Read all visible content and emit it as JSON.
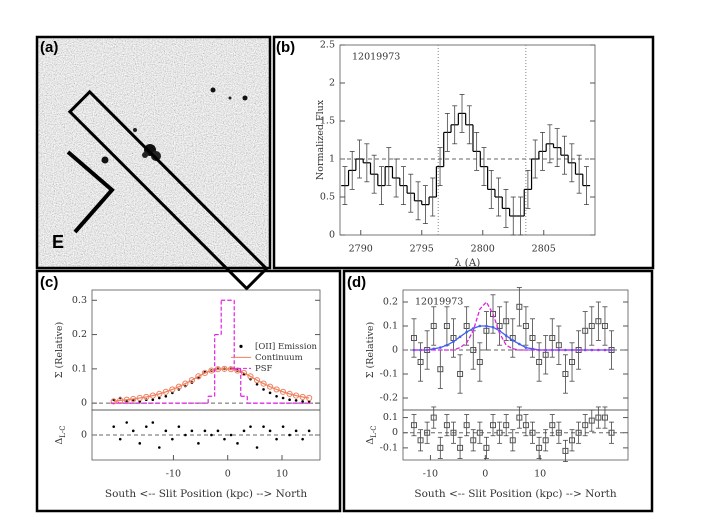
{
  "panels": [
    "(a)",
    "(b)",
    "(c)",
    "(d)"
  ],
  "image_panel": {
    "compass": "E"
  },
  "chart_data": [
    {
      "type": "line",
      "annotation": "12019973",
      "ylabel": "Normalized Flux",
      "xlabel": "λ (A)",
      "xlim": [
        2788.3,
        2809.2
      ],
      "xticks": [
        2790,
        2795,
        2800,
        2805
      ],
      "ylim": [
        0,
        2.5
      ],
      "yticks": [
        0,
        0.5,
        1,
        1.5,
        2,
        2.5
      ],
      "hlines": [
        1
      ],
      "vlines": [
        2796.35,
        2803.53
      ],
      "x": [
        2788.7,
        2789.3,
        2789.9,
        2790.5,
        2791.1,
        2791.7,
        2792.3,
        2792.9,
        2793.5,
        2794.1,
        2794.7,
        2795.3,
        2795.9,
        2796.5,
        2797.1,
        2797.7,
        2798.3,
        2798.9,
        2799.5,
        2800.1,
        2800.7,
        2801.3,
        2801.9,
        2802.5,
        2803.1,
        2803.7,
        2804.3,
        2804.9,
        2805.5,
        2806.1,
        2806.7,
        2807.3,
        2807.9,
        2808.5
      ],
      "series": [
        {
          "color": "#000000",
          "step": true,
          "values": [
            0.65,
            0.85,
            1.0,
            0.95,
            0.8,
            0.65,
            0.9,
            0.75,
            0.65,
            0.55,
            0.45,
            0.4,
            0.5,
            0.9,
            1.35,
            1.45,
            1.6,
            1.45,
            1.1,
            0.9,
            0.6,
            0.5,
            0.35,
            0.25,
            0.25,
            0.6,
            1.0,
            1.1,
            1.2,
            1.15,
            1.05,
            0.95,
            0.8,
            0.65
          ],
          "errors": [
            0.25,
            0.25,
            0.25,
            0.25,
            0.25,
            0.25,
            0.25,
            0.25,
            0.25,
            0.25,
            0.25,
            0.25,
            0.25,
            0.25,
            0.25,
            0.25,
            0.25,
            0.25,
            0.25,
            0.25,
            0.25,
            0.25,
            0.25,
            0.25,
            0.25,
            0.25,
            0.25,
            0.25,
            0.25,
            0.25,
            0.25,
            0.25,
            0.25,
            0.25
          ]
        }
      ]
    },
    {
      "type": "line",
      "ylabel": "Σ (Relative)",
      "legend": "right",
      "xlim": [
        -25,
        17
      ],
      "ylim": [
        -0.02,
        0.33
      ],
      "yticks": [
        0,
        0.1,
        0.2,
        0.3
      ],
      "hlines": [
        0
      ],
      "x": [
        -21,
        -19.8,
        -18.6,
        -17.4,
        -16.2,
        -15,
        -13.8,
        -12.6,
        -11.4,
        -10.2,
        -9,
        -7.8,
        -6.6,
        -5.4,
        -4.2,
        -3,
        -1.8,
        -0.6,
        0.6,
        1.8,
        3,
        4.2,
        5.4,
        6.6,
        7.8,
        9,
        10.2,
        11.4,
        12.6,
        13.8,
        15
      ],
      "series": [
        {
          "name": "[OII] Emission",
          "color": "#000000",
          "marker": "dot",
          "values": [
            0.01,
            0.015,
            0.005,
            0.01,
            0.005,
            0.01,
            0.01,
            0.015,
            0.02,
            0.03,
            0.04,
            0.05,
            0.06,
            0.075,
            0.09,
            0.095,
            0.1,
            0.1,
            0.1,
            0.095,
            0.085,
            0.07,
            0.055,
            0.04,
            0.03,
            0.02,
            0.015,
            0.01,
            0.008,
            0.005,
            0.005
          ]
        },
        {
          "name": "Continuum",
          "color": "#f08060",
          "line": true,
          "marker": "circle",
          "values": [
            0.005,
            0.008,
            0.01,
            0.012,
            0.015,
            0.018,
            0.022,
            0.027,
            0.033,
            0.04,
            0.048,
            0.057,
            0.067,
            0.078,
            0.088,
            0.095,
            0.099,
            0.1,
            0.099,
            0.095,
            0.088,
            0.078,
            0.067,
            0.057,
            0.048,
            0.04,
            0.033,
            0.027,
            0.022,
            0.018,
            0.015
          ]
        },
        {
          "name": "PSF",
          "color": "#e020e0",
          "step": true,
          "dash": true,
          "values": [
            0,
            0,
            0,
            0,
            0,
            0,
            0,
            0,
            0,
            0,
            0,
            0,
            0,
            0,
            0,
            0.02,
            0.2,
            0.3,
            0.3,
            0.1,
            0.02,
            0,
            0,
            0,
            0,
            0,
            0,
            0,
            0,
            0,
            0
          ]
        }
      ]
    },
    {
      "type": "scatter",
      "ylabel": "Δ",
      "ylabel_sub": "L-C",
      "xlabel": "South <-- Slit Position (kpc) --> North",
      "xlim": [
        -25,
        17
      ],
      "xticks": [
        -10,
        0,
        10
      ],
      "ylim": [
        -0.06,
        0.06
      ],
      "yticks": [
        0
      ],
      "hlines": [
        0
      ],
      "x": [
        -21,
        -19.8,
        -18.6,
        -17.4,
        -16.2,
        -15,
        -13.8,
        -12.6,
        -11.4,
        -10.2,
        -9,
        -7.8,
        -6.6,
        -5.4,
        -4.2,
        -3,
        -1.8,
        -0.6,
        0.6,
        1.8,
        3,
        4.2,
        5.4,
        6.6,
        7.8,
        9,
        10.2,
        11.4,
        12.6,
        13.8,
        15
      ],
      "series": [
        {
          "color": "#000000",
          "marker": "dot",
          "values": [
            0.02,
            -0.01,
            0.03,
            0.01,
            -0.02,
            0.02,
            0.03,
            -0.03,
            0.01,
            -0.01,
            0.02,
            0,
            0.01,
            -0.02,
            0.01,
            0,
            0.01,
            -0.01,
            0,
            -0.02,
            0.01,
            0.02,
            -0.03,
            0.02,
            0.01,
            -0.01,
            0.02,
            0,
            0.01,
            -0.01,
            0.01
          ]
        }
      ]
    },
    {
      "type": "line",
      "annotation": "12019973",
      "ylabel": "Σ (Relative)",
      "xlim": [
        -15,
        26
      ],
      "ylim": [
        -0.25,
        0.25
      ],
      "yticks": [
        -0.2,
        -0.1,
        0,
        0.1,
        0.2
      ],
      "hlines": [
        0
      ],
      "x": [
        -13,
        -11.8,
        -10.6,
        -9.4,
        -8.2,
        -7,
        -5.8,
        -4.6,
        -3.4,
        -2.2,
        -1,
        0.2,
        1.4,
        2.6,
        3.8,
        5,
        6.2,
        7.4,
        8.6,
        9.8,
        11,
        12.2,
        13.4,
        14.6,
        15.8,
        17,
        18.2,
        19.4,
        20.6,
        21.8,
        23
      ],
      "series": [
        {
          "color": "#555555",
          "marker": "square",
          "values": [
            0.05,
            -0.05,
            0,
            0.1,
            -0.08,
            0.1,
            0.05,
            -0.1,
            0.1,
            0,
            -0.05,
            0.08,
            0.15,
            0.1,
            0.12,
            0.05,
            0.18,
            0.1,
            0.05,
            -0.05,
            -0.02,
            0.05,
            0.02,
            -0.1,
            -0.05,
            0,
            0.08,
            0.1,
            0.12,
            0.1,
            0
          ],
          "errors": [
            0.08,
            0.08,
            0.08,
            0.08,
            0.08,
            0.08,
            0.08,
            0.08,
            0.08,
            0.08,
            0.08,
            0.08,
            0.08,
            0.08,
            0.08,
            0.08,
            0.08,
            0.08,
            0.08,
            0.08,
            0.08,
            0.08,
            0.08,
            0.08,
            0.08,
            0.08,
            0.08,
            0.08,
            0.08,
            0.08,
            0.08
          ]
        },
        {
          "color": "#4060f0",
          "line": true,
          "marker": "dot",
          "values": [
            0,
            0,
            0,
            0.005,
            0.01,
            0.02,
            0.035,
            0.055,
            0.075,
            0.09,
            0.1,
            0.1,
            0.095,
            0.08,
            0.06,
            0.04,
            0.025,
            0.01,
            0.005,
            0,
            0,
            0,
            0,
            0,
            0,
            0,
            0,
            0,
            0,
            0,
            0
          ]
        },
        {
          "color": "#e020e0",
          "line": true,
          "dash": true,
          "values": [
            0,
            0,
            0,
            0,
            0,
            0,
            0,
            0.01,
            0.03,
            0.08,
            0.17,
            0.2,
            0.15,
            0.07,
            0.02,
            0.005,
            0,
            0,
            0,
            0,
            0,
            0,
            0,
            0,
            0,
            0,
            0,
            0,
            0,
            0,
            0
          ]
        }
      ]
    },
    {
      "type": "scatter",
      "ylabel": "Δ",
      "ylabel_sub": "L-C",
      "xlabel": "South <-- Slit Position (kpc) --> North",
      "xlim": [
        -15,
        26
      ],
      "xticks": [
        -10,
        0,
        10
      ],
      "ylim": [
        -0.18,
        0.15
      ],
      "yticks": [
        -0.1,
        0,
        0.1
      ],
      "hlines": [
        0
      ],
      "x": [
        -13,
        -11.8,
        -10.6,
        -9.4,
        -8.2,
        -7,
        -5.8,
        -4.6,
        -3.4,
        -2.2,
        -1,
        0.2,
        1.4,
        2.6,
        3.8,
        5,
        6.2,
        7.4,
        8.6,
        9.8,
        11,
        12.2,
        13.4,
        14.6,
        15.8,
        17,
        18.2,
        19.4,
        20.6,
        21.8,
        23
      ],
      "series": [
        {
          "color": "#555555",
          "marker": "square",
          "values": [
            0.05,
            -0.05,
            0,
            0.1,
            -0.1,
            0.05,
            0,
            -0.1,
            0.05,
            -0.05,
            0,
            -0.1,
            0.05,
            0,
            0.05,
            -0.05,
            0.1,
            0.05,
            0,
            -0.1,
            -0.05,
            0.05,
            0,
            -0.12,
            -0.05,
            0,
            0.05,
            0.08,
            0.1,
            0.1,
            0
          ],
          "errors": [
            0.07,
            0.07,
            0.07,
            0.07,
            0.07,
            0.07,
            0.07,
            0.07,
            0.07,
            0.07,
            0.07,
            0.07,
            0.07,
            0.07,
            0.07,
            0.07,
            0.07,
            0.07,
            0.07,
            0.07,
            0.07,
            0.07,
            0.07,
            0.07,
            0.07,
            0.07,
            0.07,
            0.07,
            0.07,
            0.07,
            0.07
          ]
        }
      ]
    }
  ]
}
